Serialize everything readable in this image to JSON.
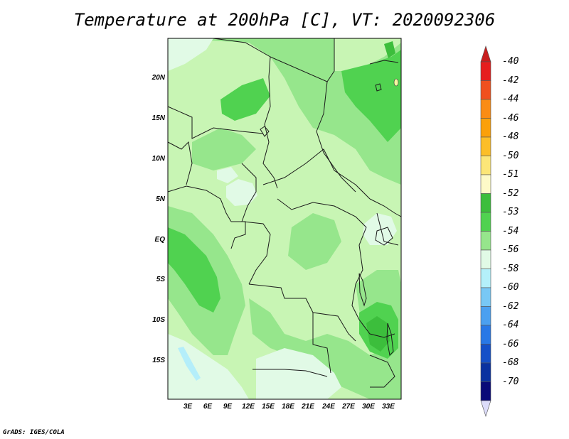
{
  "title": "Temperature at 200hPa [C], VT: 2020092306",
  "credit": "GrADS: IGES/COLA",
  "map": {
    "lat_labels": [
      "20N",
      "15N",
      "10N",
      "5N",
      "EQ",
      "5S",
      "10S",
      "15S"
    ],
    "lon_labels": [
      "3E",
      "6E",
      "9E",
      "12E",
      "15E",
      "18E",
      "21E",
      "24E",
      "27E",
      "30E",
      "33E"
    ],
    "fill_colors": {
      "lt53": "#96e68c",
      "lt54": "#c8f5b4",
      "lt56": "#e1fae6",
      "lt52": "#50d250",
      "lt51": "#3cbe3c",
      "lt58": "#b4eefa",
      "pale": "#f5f8a0",
      "border": "#1a1a1a"
    }
  },
  "colorbar": {
    "labels": [
      "-40",
      "-42",
      "-44",
      "-46",
      "-48",
      "-50",
      "-51",
      "-52",
      "-53",
      "-54",
      "-56",
      "-58",
      "-60",
      "-62",
      "-64",
      "-66",
      "-68",
      "-70"
    ],
    "colors": [
      "#e61e1e",
      "#f0501e",
      "#fa8c14",
      "#fba00a",
      "#fcbe28",
      "#fce678",
      "#fdfac8",
      "#3cbe3c",
      "#50d250",
      "#96e68c",
      "#e1fae6",
      "#b4f0fa",
      "#78c8f5",
      "#4ba0f0",
      "#2878e6",
      "#1450c8",
      "#0a32a0",
      "#0a0a78"
    ],
    "top_arrow_color": "#c81e1e",
    "bottom_arrow_color": "#dcdcfa"
  }
}
